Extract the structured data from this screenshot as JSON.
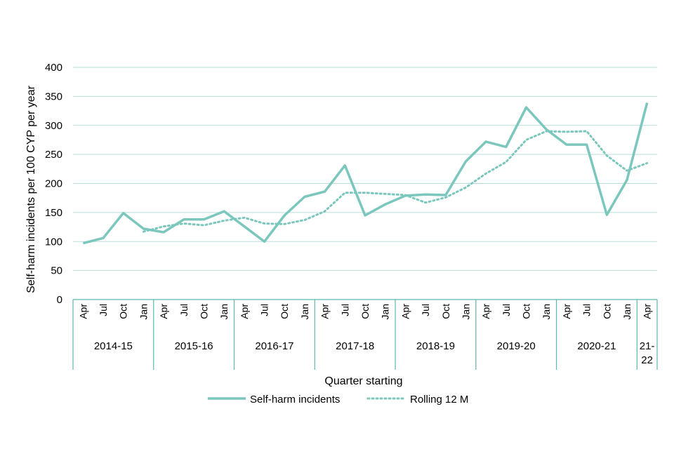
{
  "chart_data": {
    "type": "line",
    "title": "",
    "xlabel": "Quarter starting",
    "ylabel": "Self-harm incidents per 100 CYP per year",
    "ylim": [
      0,
      400
    ],
    "yticks": [
      "0",
      "50",
      "100",
      "150",
      "200",
      "250",
      "300",
      "350",
      "400"
    ],
    "grid": true,
    "legend_position": "bottom",
    "line_color": "#7cc7bd",
    "quarters": [
      "Apr",
      "Jul",
      "Oct",
      "Jan",
      "Apr",
      "Jul",
      "Oct",
      "Jan",
      "Apr",
      "Jul",
      "Oct",
      "Jan",
      "Apr",
      "Jul",
      "Oct",
      "Jan",
      "Apr",
      "Jul",
      "Oct",
      "Jan",
      "Apr",
      "Jul",
      "Oct",
      "Jan",
      "Apr",
      "Jul",
      "Oct",
      "Jan",
      "Apr"
    ],
    "years": [
      {
        "label": "2014-15",
        "span": 4
      },
      {
        "label": "2015-16",
        "span": 4
      },
      {
        "label": "2016-17",
        "span": 4
      },
      {
        "label": "2017-18",
        "span": 4
      },
      {
        "label": "2018-19",
        "span": 4
      },
      {
        "label": "2019-20",
        "span": 4
      },
      {
        "label": "2020-21",
        "span": 4
      },
      {
        "label": "21-\n22",
        "span": 1
      }
    ],
    "series": [
      {
        "name": "Self-harm incidents",
        "style": "solid",
        "values": [
          97,
          106,
          149,
          122,
          116,
          138,
          138,
          152,
          126,
          100,
          145,
          177,
          186,
          231,
          145,
          164,
          179,
          181,
          180,
          238,
          272,
          263,
          331,
          293,
          267,
          267,
          146,
          206,
          339
        ]
      },
      {
        "name": "Rolling 12 M",
        "style": "dotted",
        "values": [
          null,
          null,
          null,
          117,
          126,
          131,
          128,
          136,
          141,
          131,
          130,
          137,
          152,
          184,
          184,
          182,
          180,
          167,
          176,
          193,
          217,
          237,
          275,
          290,
          289,
          290,
          248,
          222,
          235
        ]
      }
    ]
  }
}
